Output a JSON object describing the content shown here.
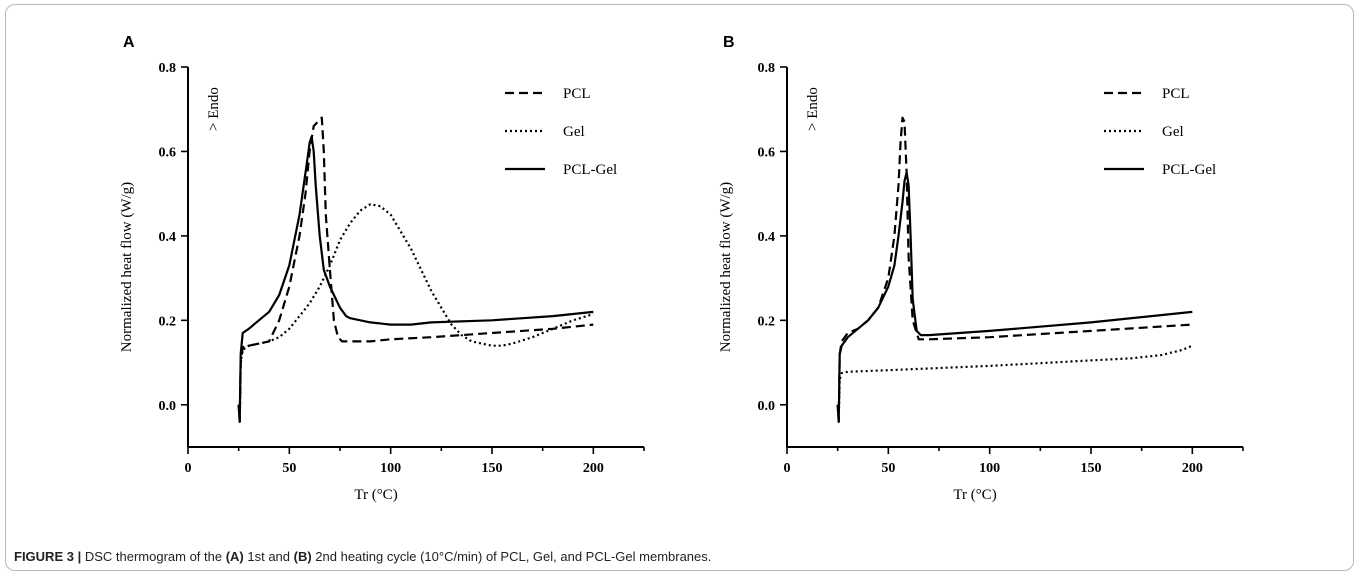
{
  "caption": {
    "label": "FIGURE 3 |",
    "t1": " DSC thermogram of the ",
    "a": "(A)",
    "t2": " 1st and ",
    "b": "(B)",
    "t3": " 2nd heating cycle (10°C/min) of PCL, Gel, and PCL-Gel membranes."
  },
  "chart_data": [
    {
      "panel": "A",
      "type": "line",
      "xlabel": "Tr (°C)",
      "ylabel": "Normalized heat flow (W/g)",
      "annotation": "> Endo",
      "xlim": [
        0,
        225
      ],
      "ylim": [
        -0.1,
        0.8
      ],
      "xticks": [
        0,
        50,
        100,
        150,
        200
      ],
      "yticks": [
        0.0,
        0.2,
        0.4,
        0.6,
        0.8
      ],
      "legend_position": "top-right",
      "series": [
        {
          "name": "PCL",
          "style": "dashed",
          "x": [
            25,
            25.5,
            26,
            27,
            28,
            30,
            35,
            40,
            45,
            50,
            55,
            58,
            60,
            62,
            64,
            66,
            67,
            68,
            70,
            72,
            74,
            76,
            80,
            90,
            100,
            120,
            150,
            180,
            200
          ],
          "y": [
            0.0,
            -0.04,
            0.1,
            0.135,
            0.14,
            0.14,
            0.145,
            0.15,
            0.2,
            0.28,
            0.4,
            0.5,
            0.6,
            0.66,
            0.67,
            0.68,
            0.6,
            0.45,
            0.32,
            0.2,
            0.16,
            0.15,
            0.15,
            0.15,
            0.155,
            0.16,
            0.17,
            0.18,
            0.19
          ]
        },
        {
          "name": "Gel",
          "style": "dotted",
          "x": [
            25,
            25.5,
            26,
            27,
            30,
            35,
            40,
            45,
            50,
            55,
            60,
            65,
            70,
            75,
            80,
            85,
            90,
            95,
            100,
            105,
            110,
            115,
            120,
            125,
            130,
            135,
            140,
            145,
            150,
            155,
            160,
            170,
            180,
            190,
            200
          ],
          "y": [
            0.0,
            -0.04,
            0.1,
            0.13,
            0.14,
            0.145,
            0.15,
            0.16,
            0.18,
            0.21,
            0.24,
            0.28,
            0.33,
            0.39,
            0.43,
            0.46,
            0.475,
            0.47,
            0.45,
            0.41,
            0.37,
            0.32,
            0.27,
            0.23,
            0.19,
            0.165,
            0.15,
            0.145,
            0.14,
            0.14,
            0.145,
            0.16,
            0.18,
            0.2,
            0.215
          ]
        },
        {
          "name": "PCL-Gel",
          "style": "solid",
          "x": [
            25,
            25.5,
            26,
            27,
            30,
            35,
            40,
            45,
            50,
            55,
            58,
            60,
            61,
            62,
            63,
            65,
            67,
            70,
            72,
            75,
            78,
            80,
            90,
            100,
            110,
            120,
            150,
            180,
            200
          ],
          "y": [
            0.0,
            -0.04,
            0.12,
            0.17,
            0.18,
            0.2,
            0.22,
            0.26,
            0.33,
            0.45,
            0.55,
            0.62,
            0.635,
            0.6,
            0.52,
            0.4,
            0.32,
            0.28,
            0.26,
            0.23,
            0.21,
            0.205,
            0.195,
            0.19,
            0.19,
            0.195,
            0.2,
            0.21,
            0.22
          ]
        }
      ]
    },
    {
      "panel": "B",
      "type": "line",
      "xlabel": "Tr (°C)",
      "ylabel": "Normalized heat flow (W/g)",
      "annotation": "> Endo",
      "xlim": [
        0,
        225
      ],
      "ylim": [
        -0.1,
        0.8
      ],
      "xticks": [
        0,
        50,
        100,
        150,
        200
      ],
      "yticks": [
        0.0,
        0.2,
        0.4,
        0.6,
        0.8
      ],
      "legend_position": "top-right",
      "series": [
        {
          "name": "PCL",
          "style": "dashed",
          "x": [
            25,
            25.5,
            26,
            27,
            30,
            35,
            40,
            45,
            50,
            53,
            55,
            56,
            57,
            58,
            59,
            60,
            62,
            65,
            70,
            100,
            150,
            200
          ],
          "y": [
            0.0,
            -0.04,
            0.12,
            0.15,
            0.17,
            0.18,
            0.2,
            0.23,
            0.3,
            0.4,
            0.52,
            0.62,
            0.68,
            0.67,
            0.55,
            0.35,
            0.2,
            0.155,
            0.155,
            0.16,
            0.175,
            0.19
          ]
        },
        {
          "name": "Gel",
          "style": "dotted",
          "x": [
            25,
            25.5,
            26,
            27,
            30,
            50,
            80,
            100,
            130,
            150,
            170,
            185,
            195,
            200
          ],
          "y": [
            0.0,
            -0.04,
            0.06,
            0.075,
            0.078,
            0.082,
            0.088,
            0.092,
            0.1,
            0.105,
            0.11,
            0.118,
            0.13,
            0.14
          ]
        },
        {
          "name": "PCL-Gel",
          "style": "solid",
          "x": [
            25,
            25.5,
            26,
            27,
            30,
            35,
            40,
            45,
            50,
            53,
            55,
            57,
            58,
            59,
            60,
            61,
            62,
            64,
            66,
            70,
            100,
            150,
            200
          ],
          "y": [
            0.0,
            -0.04,
            0.12,
            0.14,
            0.16,
            0.18,
            0.2,
            0.23,
            0.28,
            0.33,
            0.4,
            0.48,
            0.53,
            0.55,
            0.52,
            0.4,
            0.25,
            0.175,
            0.165,
            0.165,
            0.175,
            0.195,
            0.22
          ]
        }
      ]
    }
  ]
}
